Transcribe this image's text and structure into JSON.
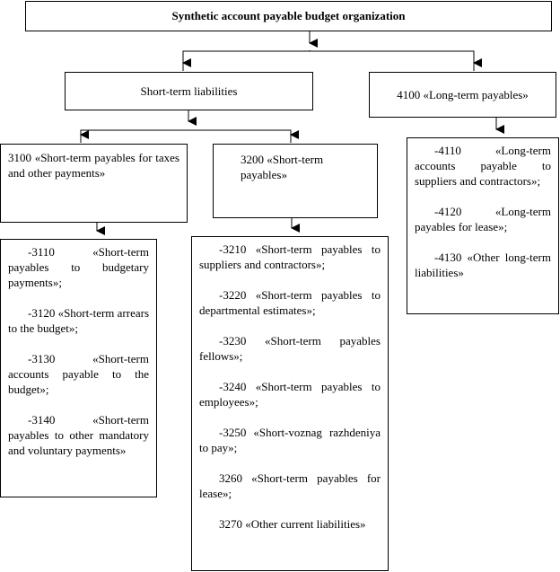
{
  "root": "Synthetic account payable budget organization",
  "short_term": "Short-term liabilities",
  "long_term": "4100 «Long-term payables»",
  "g3100": "3100 «Short-term payables for taxes and other payments»",
  "g3200": "3200 «Short-term payables»",
  "items3100": [
    "-3110 «Short-term payables to budgetary payments»;",
    "-3120 «Short-term arrears to the budget»;",
    "-3130 «Short-term accounts payable to the budget»;",
    "-3140 «Short-term payables to other mandatory and voluntary payments»"
  ],
  "items3200": [
    "-3210 «Short-term payables to suppliers and contractors»;",
    "-3220 «Short-term payables to departmental estimates»;",
    "-3230 «Short-term payables fellows»;",
    "-3240 «Short-term payables to employees»;",
    "-3250 «Short-voznag razhdeniya to pay»;",
    "3260 «Short-term payables for lease»;",
    "3270 «Other current liabilities»"
  ],
  "items4100": [
    "-4110 «Long-term accounts payable to suppliers and contractors»;",
    "-4120 «Long-term payables for lease»;",
    "-4130 «Other long-term liabilities»"
  ]
}
